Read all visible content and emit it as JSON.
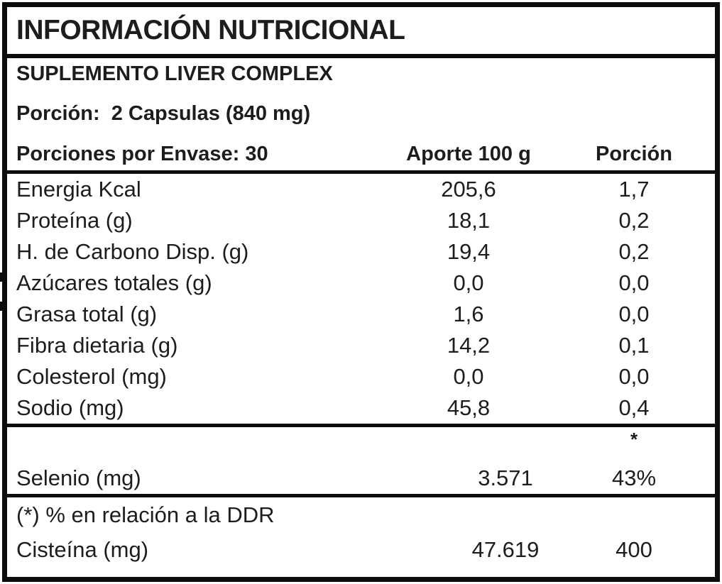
{
  "label": {
    "title": "INFORMACIÓN NUTRICIONAL",
    "product_name": "SUPLEMENTO LIVER COMPLEX",
    "serving_size_line": "Porción:  2 Capsulas (840 mg)",
    "servings_per_container_line": "Porciones por Envase: 30",
    "columns": {
      "per_100g": "Aporte 100 g",
      "per_serving": "Porción"
    },
    "nutrient_rows": [
      {
        "name": "Energia Kcal",
        "per_100g": "205,6",
        "per_serving": "1,7"
      },
      {
        "name": "Proteína (g)",
        "per_100g": "18,1",
        "per_serving": "0,2"
      },
      {
        "name": "H. de Carbono Disp. (g)",
        "per_100g": "19,4",
        "per_serving": "0,2"
      },
      {
        "name": "Azúcares totales (g)",
        "per_100g": "0,0",
        "per_serving": "0,0"
      },
      {
        "name": "Grasa total (g)",
        "per_100g": "1,6",
        "per_serving": "0,0"
      },
      {
        "name": "Fibra dietaria (g)",
        "per_100g": "14,2",
        "per_serving": "0,1"
      },
      {
        "name": "Colesterol (mg)",
        "per_100g": "0,0",
        "per_serving": "0,0"
      },
      {
        "name": "Sodio (mg)",
        "per_100g": "45,8",
        "per_serving": "0,4"
      }
    ],
    "star_marker": "*",
    "selenium_row": {
      "name": "Selenio (mg)",
      "per_100g": "3.571",
      "per_serving": "43%"
    },
    "footnote": "(*) % en relación a la DDR",
    "cysteine_row": {
      "name": "Cisteína (mg)",
      "per_100g": "47.619",
      "per_serving": "400"
    }
  },
  "colors": {
    "text": "#1d1d1d",
    "border": "#0c0c0c",
    "background": "#ffffff"
  }
}
